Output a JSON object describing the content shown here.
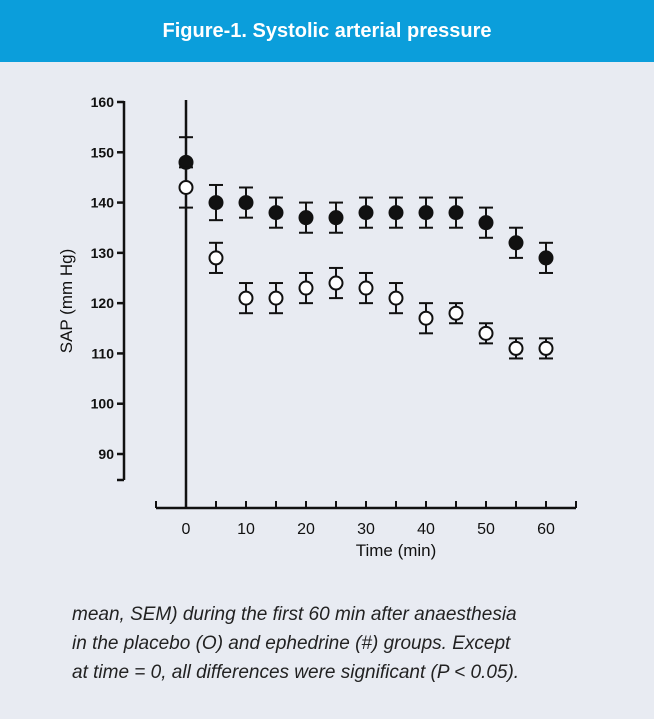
{
  "figure": {
    "title": "Figure-1. Systolic arterial pressure",
    "caption_lines": [
      "mean, SEM) during the first 60 min after anaesthesia",
      "in the placebo (O) and ephedrine (#) groups. Except",
      "at time = 0, all differences were significant (P < 0.05)."
    ]
  },
  "colors": {
    "header_bg": "#0b9edb",
    "panel_bg": "#e8ebf2",
    "axis": "#111111"
  },
  "chart_data": {
    "type": "scatter",
    "title": "Figure-1. Systolic arterial pressure",
    "xlabel": "Time (min)",
    "ylabel": "SAP (mm Hg)",
    "xlim": [
      -5,
      65
    ],
    "ylim": [
      82,
      160
    ],
    "xticks": [
      0,
      10,
      20,
      30,
      40,
      50,
      60
    ],
    "yticks": [
      90,
      100,
      110,
      120,
      130,
      140,
      150,
      160
    ],
    "grid": false,
    "error_bars": "SEM",
    "series": [
      {
        "marker": "filled-circle",
        "x": [
          0,
          5,
          10,
          15,
          20,
          25,
          30,
          35,
          40,
          45,
          50,
          55,
          60
        ],
        "y": [
          148,
          140,
          140,
          138,
          137,
          137,
          138,
          138,
          138,
          138,
          136,
          132,
          129
        ],
        "err": [
          5,
          3.5,
          3,
          3,
          3,
          3,
          3,
          3,
          3,
          3,
          3,
          3,
          3
        ]
      },
      {
        "marker": "open-circle",
        "x": [
          0,
          5,
          10,
          15,
          20,
          25,
          30,
          35,
          40,
          45,
          50,
          55,
          60
        ],
        "y": [
          143,
          129,
          121,
          121,
          123,
          124,
          123,
          121,
          117,
          118,
          114,
          111,
          111
        ],
        "err": [
          4,
          3,
          3,
          3,
          3,
          3,
          3,
          3,
          3,
          2,
          2,
          2,
          2
        ]
      }
    ]
  }
}
